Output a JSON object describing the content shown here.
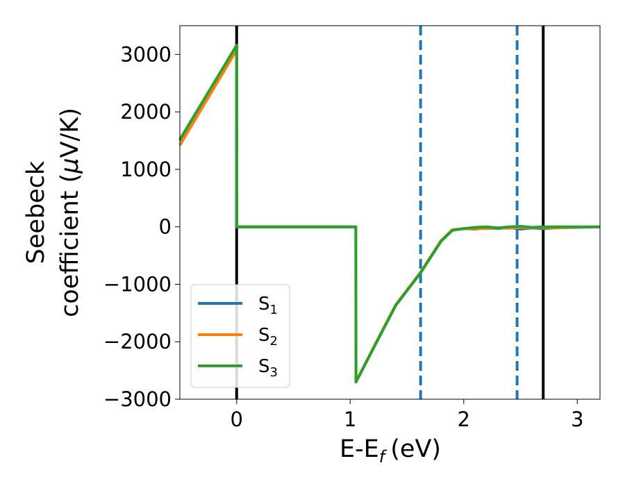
{
  "chart_data": {
    "type": "line",
    "xlabel": "E-E",
    "xlabel_sub": "f",
    "xlabel_unit": "(eV)",
    "ylabel_line1": "Seebeck",
    "ylabel_line2": "coefficient  (",
    "ylabel_mu": "μ",
    "ylabel_unit": "V/K)",
    "xlim": [
      -0.5,
      3.2
    ],
    "ylim": [
      -3000,
      3500
    ],
    "xticks": [
      0,
      1,
      2,
      3
    ],
    "xtick_labels": [
      "0",
      "1",
      "2",
      "3"
    ],
    "yticks": [
      -3000,
      -2000,
      -1000,
      0,
      1000,
      2000,
      3000
    ],
    "ytick_labels": [
      "−3000",
      "−2000",
      "−1000",
      "0",
      "1000",
      "2000",
      "3000"
    ],
    "grid": false,
    "legend_position": "lower-left",
    "vlines": [
      {
        "x": 0,
        "style": "solid",
        "color": "#000000"
      },
      {
        "x": 1.62,
        "style": "dashed",
        "color": "#1f77b4"
      },
      {
        "x": 2.47,
        "style": "dashed",
        "color": "#1f77b4"
      },
      {
        "x": 2.7,
        "style": "solid",
        "color": "#000000"
      }
    ],
    "series": [
      {
        "name": "S",
        "sub": "1",
        "color": "#1f77b4",
        "x": [
          -0.5,
          0.0,
          0.001,
          1.05,
          1.051,
          1.2,
          1.4,
          1.62,
          1.8,
          1.9,
          2.0,
          2.1,
          2.2,
          2.3,
          2.4,
          2.5,
          2.6,
          2.7,
          2.8,
          3.0,
          3.2
        ],
        "y": [
          1500,
          3130,
          0,
          0,
          -2700,
          -2130,
          -1370,
          -800,
          -250,
          -60,
          -30,
          -40,
          -20,
          -30,
          -10,
          -40,
          -20,
          -30,
          -20,
          -10,
          0
        ]
      },
      {
        "name": "S",
        "sub": "2",
        "color": "#ff7f0e",
        "x": [
          -0.5,
          0.0,
          0.001,
          1.05,
          1.051,
          1.2,
          1.4,
          1.62,
          1.8,
          1.9,
          2.0,
          2.1,
          2.2,
          2.3,
          2.4,
          2.5,
          2.6,
          2.7,
          2.8,
          3.0,
          3.2
        ],
        "y": [
          1420,
          3080,
          0,
          0,
          -2700,
          -2120,
          -1360,
          -790,
          -240,
          -50,
          -35,
          -30,
          -30,
          -20,
          -25,
          -10,
          -15,
          -10,
          -20,
          -5,
          0
        ]
      },
      {
        "name": "S",
        "sub": "3",
        "color": "#2ca02c",
        "x": [
          -0.5,
          0.0,
          0.001,
          1.05,
          1.051,
          1.2,
          1.4,
          1.62,
          1.8,
          1.9,
          2.0,
          2.1,
          2.2,
          2.3,
          2.4,
          2.5,
          2.6,
          2.7,
          2.8,
          3.0,
          3.2
        ],
        "y": [
          1520,
          3160,
          0,
          0,
          -2700,
          -2130,
          -1370,
          -800,
          -250,
          -60,
          -30,
          -10,
          0,
          -20,
          0,
          10,
          -10,
          0,
          0,
          0,
          0
        ]
      }
    ]
  }
}
